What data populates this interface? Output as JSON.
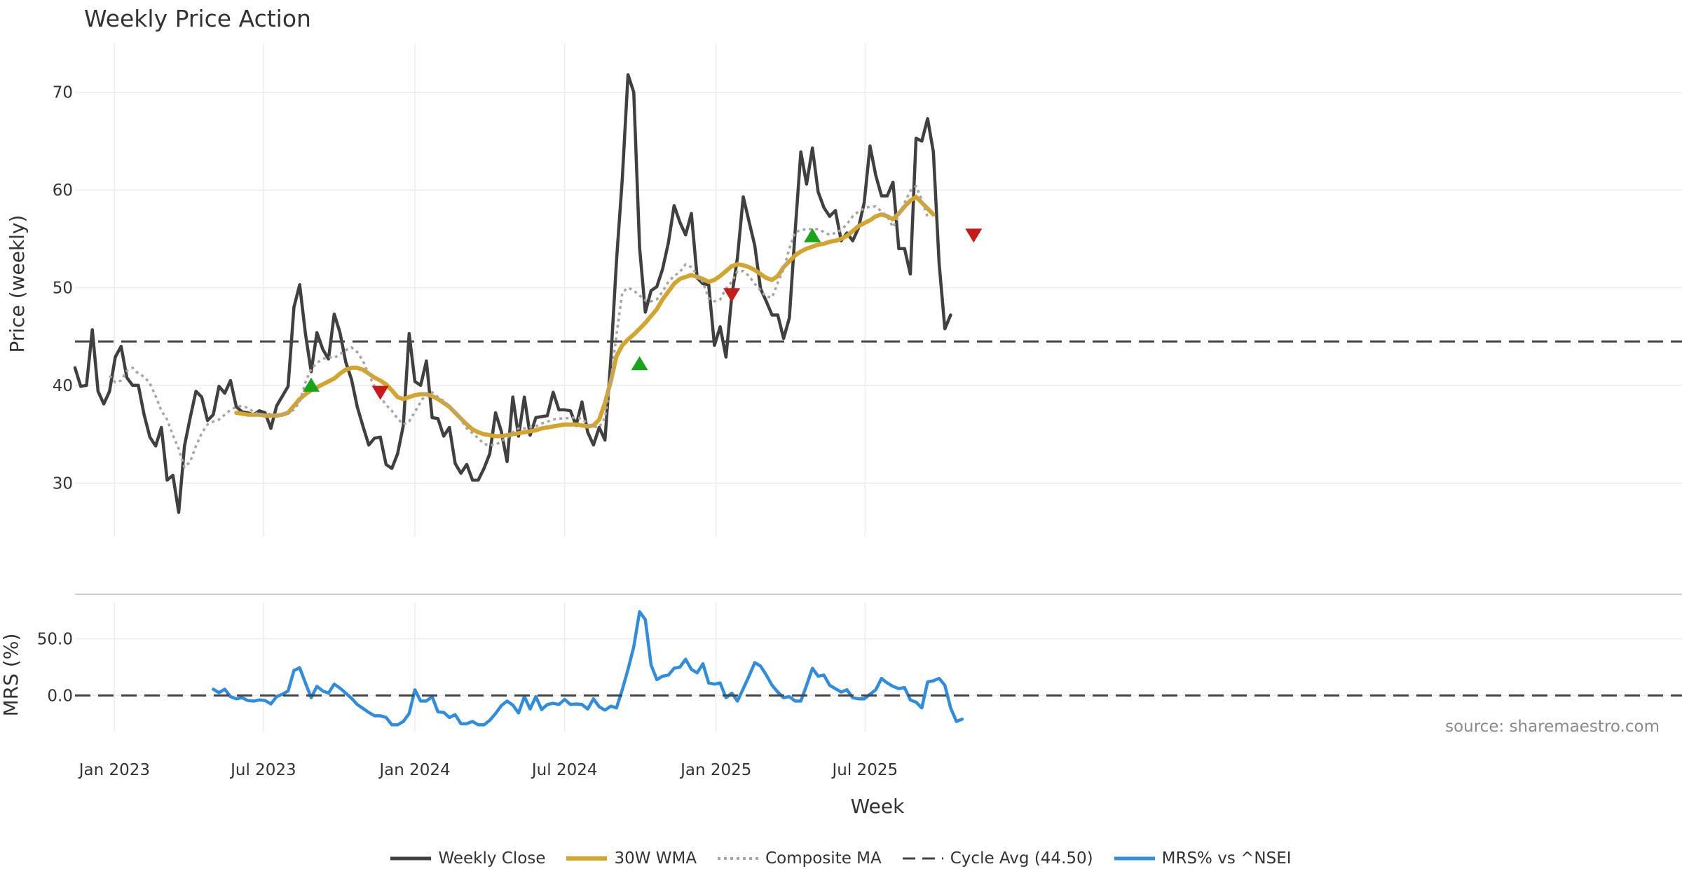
{
  "chart_data": {
    "type": "line",
    "title": "Weekly Price Action",
    "xlabel": "Week",
    "x_ticks": [
      "Jan 2023",
      "Jul 2023",
      "Jan 2024",
      "Jul 2024",
      "Jan 2025",
      "Jul 2025"
    ],
    "watermark": "source: sharemaestro.com",
    "grid": true,
    "legend_position": "bottom-center",
    "panels": [
      {
        "name": "price",
        "ylabel": "Price (weekly)",
        "ylim": [
          24.5,
          75
        ],
        "y_ticks": [
          30,
          40,
          50,
          60,
          70
        ],
        "series": [
          {
            "name": "Weekly Close",
            "color": "#404040",
            "style": "solid",
            "start_date": "2022-11-14",
            "values": [
              41.8,
              39.9,
              40,
              45.7,
              39.4,
              38.1,
              39.4,
              42.9,
              44,
              40.8,
              40,
              40,
              37,
              34.7,
              33.8,
              35.7,
              30.3,
              30.8,
              27,
              33.8,
              36.7,
              39.4,
              38.8,
              36.4,
              37,
              39.9,
              39.2,
              40.5,
              37.8,
              37.3,
              37.2,
              37,
              37.4,
              37.2,
              35.6,
              37.9,
              38.9,
              39.9,
              48,
              50.3,
              45.3,
              41.4,
              45.4,
              43.7,
              42.7,
              47.3,
              45.4,
              42.4,
              40.6,
              37.8,
              35.8,
              33.9,
              34.6,
              34.7,
              31.9,
              31.5,
              33,
              35.9,
              45.3,
              40.4,
              40,
              42.5,
              36.7,
              36.6,
              34.8,
              35.7,
              32,
              31,
              31.9,
              30.3,
              30.3,
              31.5,
              33,
              37.2,
              35.3,
              32.2,
              38.8,
              34.8,
              38.8,
              34.9,
              36.7,
              36.8,
              36.9,
              39.3,
              37.5,
              37.5,
              37.4,
              35.9,
              38.3,
              35.2,
              33.9,
              35.7,
              34.4,
              42.6,
              52.8,
              61.1,
              71.8,
              70,
              54.1,
              47.5,
              49.7,
              50.1,
              51.9,
              54.6,
              58.4,
              56.7,
              55.4,
              57.6,
              51,
              50.4,
              50.3,
              44.1,
              46,
              42.9,
              49.1,
              53.1,
              59.3,
              56.8,
              54.3,
              49.9,
              48.6,
              47.2,
              47.2,
              44.8,
              46.9,
              55.7,
              63.9,
              60.6,
              64.3,
              59.8,
              58.2,
              57.3,
              57.9,
              54.8,
              55.6,
              54.8,
              56.1,
              58.7,
              64.5,
              61.5,
              59.4,
              59.4,
              60.8,
              54,
              54,
              51.4,
              65.3,
              65,
              67.3,
              63.9,
              52.5,
              45.8,
              47.2
            ]
          },
          {
            "name": "30W WMA",
            "color": "#D4A52E",
            "style": "solid",
            "start_date": "2023-05-29",
            "values": [
              37.2,
              37.1,
              37,
              37,
              37,
              36.9,
              36.9,
              36.9,
              37,
              37.2,
              37.9,
              38.6,
              39.1,
              39.5,
              39.8,
              40.1,
              40.4,
              40.7,
              41.2,
              41.6,
              41.8,
              41.8,
              41.6,
              41.2,
              40.8,
              40.5,
              40.1,
              39.5,
              38.8,
              38.6,
              38.8,
              39,
              39.1,
              39.1,
              38.9,
              38.6,
              38.2,
              37.8,
              37.2,
              36.6,
              36,
              35.5,
              35.2,
              35,
              34.9,
              34.8,
              34.8,
              34.9,
              35,
              35.1,
              35.2,
              35.3,
              35.4,
              35.6,
              35.7,
              35.8,
              35.9,
              36,
              36,
              36,
              35.9,
              35.8,
              35.9,
              36.5,
              38.2,
              40.4,
              43,
              44.1,
              44.7,
              45.2,
              45.8,
              46.4,
              47.1,
              47.8,
              48.8,
              49.6,
              50.4,
              50.9,
              51.1,
              51.3,
              51.1,
              50.9,
              50.6,
              50.8,
              51.2,
              51.7,
              52.2,
              52.4,
              52.3,
              52.1,
              51.8,
              51.4,
              51,
              50.8,
              51.2,
              52.1,
              52.7,
              53.3,
              53.7,
              54,
              54.2,
              54.4,
              54.5,
              54.7,
              54.8,
              55,
              55.3,
              55.8,
              56.3,
              56.6,
              56.9,
              57.3,
              57.5,
              57.3,
              57,
              57.6,
              58.3,
              58.9,
              59.3,
              58.7,
              58.1,
              57.5
            ]
          },
          {
            "name": "Composite MA",
            "color": "#A6A6A6",
            "style": "dotted",
            "start_date": "2022-12-26",
            "values": [
              41,
              40.3,
              40.5,
              41.5,
              41.8,
              41.2,
              40.9,
              40.2,
              38.9,
              37.4,
              36.5,
              34.9,
              33.5,
              31.6,
              32.2,
              33.8,
              35.1,
              36,
              36.3,
              36.5,
              37,
              37.5,
              37.8,
              37.9,
              37.7,
              37.3,
              37,
              37,
              37.1,
              36.9,
              36.9,
              37.2,
              37.5,
              38.3,
              40.3,
              41.7,
              42.3,
              42.7,
              42.9,
              42.8,
              43.2,
              43.6,
              43.9,
              43.4,
              42.5,
              41.1,
              39.9,
              38.8,
              38,
              37.4,
              36.6,
              36,
              36.3,
              37.3,
              38.3,
              39.2,
              39.3,
              38.8,
              38.4,
              37.9,
              37.3,
              36.5,
              35.6,
              35.1,
              34.6,
              34,
              33.9,
              33.9,
              34.3,
              34.6,
              35.2,
              35.6,
              35.6,
              35.7,
              35.8,
              36.1,
              36.3,
              36.5,
              36.6,
              36.6,
              36.7,
              36.7,
              36.6,
              36,
              35.8,
              35.7,
              36.7,
              40.4,
              45.2,
              49.5,
              50,
              49.7,
              49.2,
              48.7,
              48.6,
              48.8,
              49.6,
              50.6,
              51.2,
              51.6,
              52.4,
              52.1,
              51.3,
              50.6,
              48.9,
              48.6,
              48.8,
              49.9,
              50.6,
              51.7,
              51.7,
              51.2,
              50.4,
              49.7,
              49.1,
              49,
              50.5,
              51.9,
              54,
              55.7,
              55.9,
              56,
              56,
              56,
              55.7,
              55.4,
              55.6,
              55.9,
              56.5,
              57.3,
              57.8,
              58.1,
              58.3,
              58.3,
              57.8,
              57.3,
              56.2,
              57.4,
              58.7,
              59.9,
              60.4,
              59,
              57.2
            ]
          },
          {
            "name": "Cycle Avg (44.50)",
            "color": "#444444",
            "style": "dashed",
            "value": 44.5
          }
        ],
        "markers": [
          {
            "type": "buy",
            "date": "2023-08-28",
            "value": 40,
            "color": "#17A51A"
          },
          {
            "type": "sell",
            "date": "2023-11-20",
            "value": 39.3,
            "color": "#C91A1A"
          },
          {
            "type": "buy",
            "date": "2024-09-30",
            "value": 42.2,
            "color": "#17A51A"
          },
          {
            "type": "sell",
            "date": "2025-01-20",
            "value": 49.3,
            "color": "#C91A1A"
          },
          {
            "type": "buy",
            "date": "2025-04-28",
            "value": 55.3,
            "color": "#17A51A"
          },
          {
            "type": "sell",
            "date": "2025-11-10",
            "value": 55.4,
            "color": "#C91A1A"
          }
        ]
      },
      {
        "name": "mrs",
        "ylabel": "MRS (%)",
        "ylim": [
          -32,
          82
        ],
        "y_ticks": [
          0,
          50
        ],
        "y_tick_labels": [
          "0.0",
          "50.0"
        ],
        "series": [
          {
            "name": "MRS% vs ^NSEI",
            "color": "#2E8DE0",
            "style": "solid",
            "start_date": "2023-05-01",
            "values": [
              5.5,
              2.5,
              5.5,
              -1,
              -3,
              -2,
              -4.5,
              -5,
              -4,
              -4.5,
              -7.5,
              -1,
              1,
              4,
              22,
              24.5,
              11,
              -2,
              8,
              4,
              2,
              10,
              6.5,
              2,
              -2.5,
              -8,
              -11.5,
              -15,
              -18,
              -18,
              -19.5,
              -26,
              -26,
              -23,
              -16,
              5,
              -5,
              -5,
              -1,
              -14.5,
              -15,
              -19.5,
              -17,
              -25,
              -25,
              -23,
              -26,
              -26,
              -22,
              -16,
              -9,
              -5,
              -8.5,
              -15.5,
              -1,
              -12,
              -1,
              -12.5,
              -8,
              -7,
              -8,
              -3.5,
              -8,
              -7.5,
              -8,
              -12,
              -3,
              -10,
              -13,
              -9.5,
              -11,
              5,
              23,
              43,
              74,
              67,
              27,
              14,
              17,
              18,
              24,
              25,
              32,
              23,
              20,
              28,
              11,
              10,
              11,
              -2,
              2,
              -5,
              6,
              17,
              29,
              26,
              18,
              9,
              3,
              -2,
              -1,
              -5,
              -5,
              9,
              24,
              17,
              18,
              9,
              6,
              3,
              5,
              -2,
              -3,
              -3,
              1,
              5,
              15,
              11,
              8,
              6,
              7,
              -4,
              -6,
              -11,
              12,
              13,
              15,
              9,
              -11,
              -23,
              -21
            ]
          },
          {
            "name": "",
            "color": "#444444",
            "style": "dashed",
            "value": 0
          }
        ]
      }
    ]
  }
}
